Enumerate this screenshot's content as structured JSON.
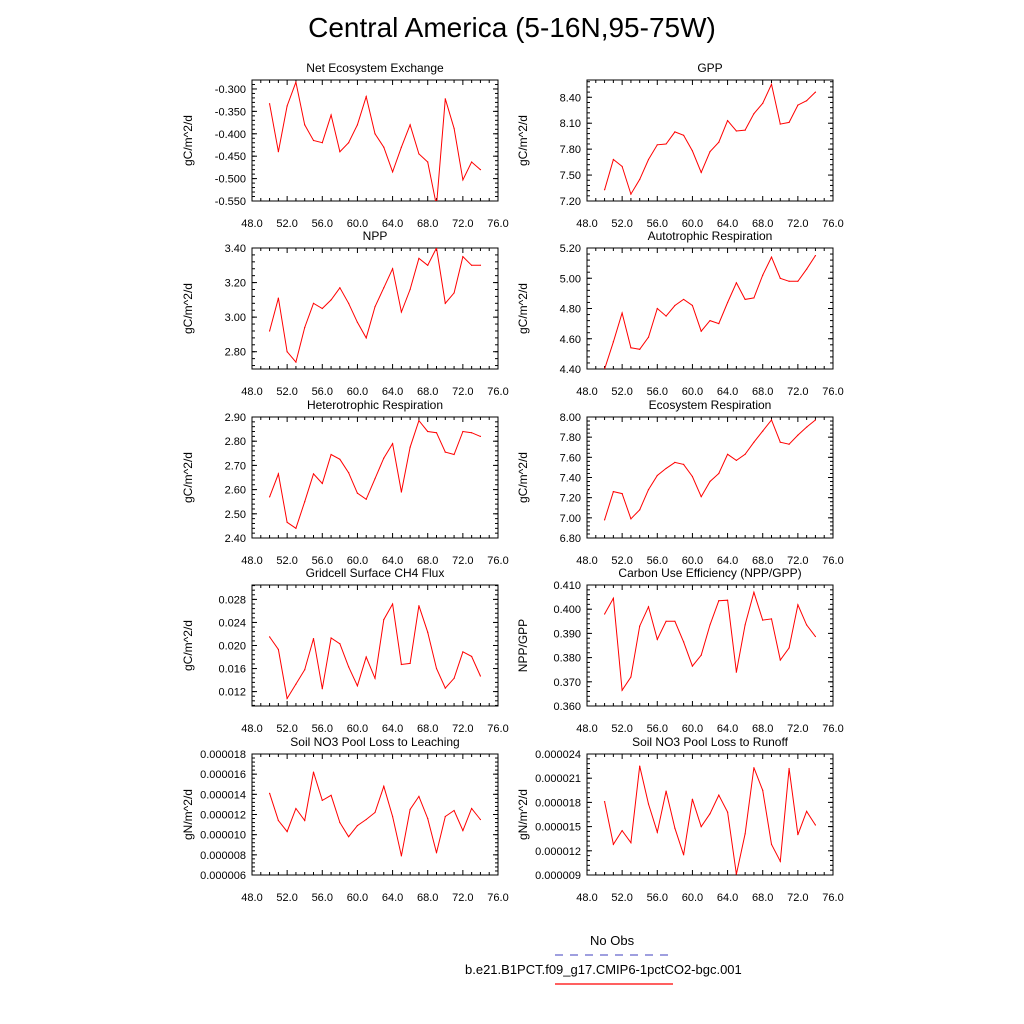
{
  "title": "Central America (5-16N,95-75W)",
  "colors": {
    "model_line": "#ff0000",
    "obs_line": "#6666cc",
    "axis": "#000000"
  },
  "legend": {
    "obs_label": "No Obs",
    "model_label": "b.e21.B1PCT.f09_g17.CMIP6-1pctCO2-bgc.001"
  },
  "chart_data": [
    {
      "type": "line",
      "title": "Net Ecosystem Exchange",
      "ylabel": "gC/m^2/d",
      "xlim": [
        48,
        76
      ],
      "ylim": [
        -0.55,
        -0.28
      ],
      "xticks": [
        "48.0",
        "52.0",
        "56.0",
        "60.0",
        "64.0",
        "68.0",
        "72.0",
        "76.0"
      ],
      "yticks": [
        -0.3,
        -0.35,
        -0.4,
        -0.45,
        -0.5,
        -0.55
      ],
      "yticklabels": [
        "-0.300",
        "-0.350",
        "-0.400",
        "-0.450",
        "-0.500",
        "-0.550"
      ],
      "x": [
        50,
        51,
        52,
        53,
        54,
        55,
        56,
        57,
        58,
        59,
        60,
        61,
        62,
        63,
        64,
        65,
        66,
        67,
        68,
        69,
        70,
        71,
        72,
        73,
        74
      ],
      "values": [
        -0.333,
        -0.44,
        -0.338,
        -0.285,
        -0.38,
        -0.415,
        -0.42,
        -0.358,
        -0.44,
        -0.42,
        -0.38,
        -0.317,
        -0.4,
        -0.43,
        -0.485,
        -0.43,
        -0.38,
        -0.445,
        -0.463,
        -0.56,
        -0.322,
        -0.388,
        -0.503,
        -0.463,
        -0.48
      ]
    },
    {
      "type": "line",
      "title": "GPP",
      "ylabel": "gC/m^2/d",
      "xlim": [
        48,
        76
      ],
      "ylim": [
        7.2,
        8.6
      ],
      "xticks": [
        "48.0",
        "52.0",
        "56.0",
        "60.0",
        "64.0",
        "68.0",
        "72.0",
        "76.0"
      ],
      "yticks": [
        7.2,
        7.5,
        7.8,
        8.1,
        8.4
      ],
      "yticklabels": [
        "7.20",
        "7.50",
        "7.80",
        "8.10",
        "8.40"
      ],
      "x": [
        50,
        51,
        52,
        53,
        54,
        55,
        56,
        57,
        58,
        59,
        60,
        61,
        62,
        63,
        64,
        65,
        66,
        67,
        68,
        69,
        70,
        71,
        72,
        73,
        74
      ],
      "values": [
        7.33,
        7.68,
        7.6,
        7.28,
        7.45,
        7.68,
        7.85,
        7.86,
        8.0,
        7.96,
        7.78,
        7.53,
        7.77,
        7.88,
        8.13,
        8.01,
        8.02,
        8.21,
        8.33,
        8.55,
        8.09,
        8.11,
        8.31,
        8.36,
        8.46
      ]
    },
    {
      "type": "line",
      "title": "NPP",
      "ylabel": "gC/m^2/d",
      "xlim": [
        48,
        76
      ],
      "ylim": [
        2.7,
        3.4
      ],
      "xticks": [
        "48.0",
        "52.0",
        "56.0",
        "60.0",
        "64.0",
        "68.0",
        "72.0",
        "76.0"
      ],
      "yticks": [
        2.8,
        3.0,
        3.2,
        3.4
      ],
      "yticklabels": [
        "2.80",
        "3.00",
        "3.20",
        "3.40"
      ],
      "x": [
        50,
        51,
        52,
        53,
        54,
        55,
        56,
        57,
        58,
        59,
        60,
        61,
        62,
        63,
        64,
        65,
        66,
        67,
        68,
        69,
        70,
        71,
        72,
        73,
        74
      ],
      "values": [
        2.92,
        3.11,
        2.8,
        2.74,
        2.94,
        3.08,
        3.05,
        3.1,
        3.17,
        3.08,
        2.97,
        2.88,
        3.06,
        3.17,
        3.28,
        3.03,
        3.16,
        3.34,
        3.3,
        3.4,
        3.08,
        3.14,
        3.35,
        3.3,
        3.3
      ]
    },
    {
      "type": "line",
      "title": "Autotrophic Respiration",
      "ylabel": "gC/m^2/d",
      "xlim": [
        48,
        76
      ],
      "ylim": [
        4.4,
        5.2
      ],
      "xticks": [
        "48.0",
        "52.0",
        "56.0",
        "60.0",
        "64.0",
        "68.0",
        "72.0",
        "76.0"
      ],
      "yticks": [
        4.4,
        4.6,
        4.8,
        5.0,
        5.2
      ],
      "yticklabels": [
        "4.40",
        "4.60",
        "4.80",
        "5.00",
        "5.20"
      ],
      "x": [
        50,
        51,
        52,
        53,
        54,
        55,
        56,
        57,
        58,
        59,
        60,
        61,
        62,
        63,
        64,
        65,
        66,
        67,
        68,
        69,
        70,
        71,
        72,
        73,
        74
      ],
      "values": [
        4.4,
        4.58,
        4.77,
        4.54,
        4.53,
        4.61,
        4.8,
        4.75,
        4.82,
        4.86,
        4.82,
        4.65,
        4.72,
        4.7,
        4.84,
        4.97,
        4.86,
        4.87,
        5.02,
        5.14,
        5.0,
        4.98,
        4.98,
        5.06,
        5.15
      ]
    },
    {
      "type": "line",
      "title": "Heterotrophic Respiration",
      "ylabel": "gC/m^2/d",
      "xlim": [
        48,
        76
      ],
      "ylim": [
        2.4,
        2.9
      ],
      "xticks": [
        "48.0",
        "52.0",
        "56.0",
        "60.0",
        "64.0",
        "68.0",
        "72.0",
        "76.0"
      ],
      "yticks": [
        2.4,
        2.5,
        2.6,
        2.7,
        2.8,
        2.9
      ],
      "yticklabels": [
        "2.40",
        "2.50",
        "2.60",
        "2.70",
        "2.80",
        "2.90"
      ],
      "x": [
        50,
        51,
        52,
        53,
        54,
        55,
        56,
        57,
        58,
        59,
        60,
        61,
        62,
        63,
        64,
        65,
        66,
        67,
        68,
        69,
        70,
        71,
        72,
        73,
        74
      ],
      "values": [
        2.57,
        2.665,
        2.465,
        2.44,
        2.55,
        2.665,
        2.625,
        2.745,
        2.725,
        2.67,
        2.585,
        2.56,
        2.645,
        2.73,
        2.79,
        2.59,
        2.775,
        2.885,
        2.84,
        2.835,
        2.755,
        2.745,
        2.84,
        2.835,
        2.82
      ]
    },
    {
      "type": "line",
      "title": "Ecosystem Respiration",
      "ylabel": "gC/m^2/d",
      "xlim": [
        48,
        76
      ],
      "ylim": [
        6.8,
        8.0
      ],
      "xticks": [
        "48.0",
        "52.0",
        "56.0",
        "60.0",
        "64.0",
        "68.0",
        "72.0",
        "76.0"
      ],
      "yticks": [
        6.8,
        7.0,
        7.2,
        7.4,
        7.6,
        7.8,
        8.0
      ],
      "yticklabels": [
        "6.80",
        "7.00",
        "7.20",
        "7.40",
        "7.60",
        "7.80",
        "8.00"
      ],
      "x": [
        50,
        51,
        52,
        53,
        54,
        55,
        56,
        57,
        58,
        59,
        60,
        61,
        62,
        63,
        64,
        65,
        66,
        67,
        68,
        69,
        70,
        71,
        72,
        73,
        74
      ],
      "values": [
        6.98,
        7.26,
        7.24,
        6.99,
        7.08,
        7.28,
        7.42,
        7.49,
        7.55,
        7.53,
        7.41,
        7.21,
        7.36,
        7.44,
        7.63,
        7.57,
        7.63,
        7.75,
        7.86,
        7.97,
        7.75,
        7.73,
        7.82,
        7.9,
        7.97
      ]
    },
    {
      "type": "line",
      "title": "Gridcell Surface CH4 Flux",
      "ylabel": "gC/m^2/d",
      "xlim": [
        48,
        76
      ],
      "ylim": [
        0.0095,
        0.0305
      ],
      "xticks": [
        "48.0",
        "52.0",
        "56.0",
        "60.0",
        "64.0",
        "68.0",
        "72.0",
        "76.0"
      ],
      "yticks": [
        0.012,
        0.016,
        0.02,
        0.024,
        0.028
      ],
      "yticklabels": [
        "0.012",
        "0.016",
        "0.020",
        "0.024",
        "0.028"
      ],
      "x": [
        50,
        51,
        52,
        53,
        54,
        55,
        56,
        57,
        58,
        59,
        60,
        61,
        62,
        63,
        64,
        65,
        66,
        67,
        68,
        69,
        70,
        71,
        72,
        73,
        74
      ],
      "values": [
        0.0215,
        0.0193,
        0.0108,
        0.0133,
        0.0158,
        0.0212,
        0.0125,
        0.0213,
        0.0203,
        0.0163,
        0.013,
        0.018,
        0.0143,
        0.0245,
        0.0272,
        0.0167,
        0.0169,
        0.0269,
        0.0223,
        0.016,
        0.0126,
        0.0143,
        0.0189,
        0.0181,
        0.0147
      ]
    },
    {
      "type": "line",
      "title": "Carbon Use Efficiency (NPP/GPP)",
      "ylabel": "NPP/GPP",
      "xlim": [
        48,
        76
      ],
      "ylim": [
        0.36,
        0.41
      ],
      "xticks": [
        "48.0",
        "52.0",
        "56.0",
        "60.0",
        "64.0",
        "68.0",
        "72.0",
        "76.0"
      ],
      "yticks": [
        0.36,
        0.37,
        0.38,
        0.39,
        0.4,
        0.41
      ],
      "yticklabels": [
        "0.360",
        "0.370",
        "0.380",
        "0.390",
        "0.400",
        "0.410"
      ],
      "x": [
        50,
        51,
        52,
        53,
        54,
        55,
        56,
        57,
        58,
        59,
        60,
        61,
        62,
        63,
        64,
        65,
        66,
        67,
        68,
        69,
        70,
        71,
        72,
        73,
        74
      ],
      "values": [
        0.398,
        0.4045,
        0.3665,
        0.372,
        0.393,
        0.401,
        0.3875,
        0.395,
        0.395,
        0.3865,
        0.3765,
        0.381,
        0.3935,
        0.4035,
        0.4037,
        0.374,
        0.3935,
        0.407,
        0.3955,
        0.396,
        0.379,
        0.384,
        0.4018,
        0.3935,
        0.3887
      ]
    },
    {
      "type": "line",
      "title": "Soil NO3 Pool Loss to Leaching",
      "ylabel": "gN/m^2/d",
      "xlim": [
        48,
        76
      ],
      "ylim": [
        6e-06,
        1.8e-05
      ],
      "xticks": [
        "48.0",
        "52.0",
        "56.0",
        "60.0",
        "64.0",
        "68.0",
        "72.0",
        "76.0"
      ],
      "yticks": [
        6e-06,
        8e-06,
        1e-05,
        1.2e-05,
        1.4e-05,
        1.6e-05,
        1.8e-05
      ],
      "yticklabels": [
        "0.000006",
        "0.000008",
        "0.000010",
        "0.000012",
        "0.000014",
        "0.000016",
        "0.000018"
      ],
      "x": [
        50,
        51,
        52,
        53,
        54,
        55,
        56,
        57,
        58,
        59,
        60,
        61,
        62,
        63,
        64,
        65,
        66,
        67,
        68,
        69,
        70,
        71,
        72,
        73,
        74
      ],
      "values": [
        1.41e-05,
        1.14e-05,
        1.03e-05,
        1.26e-05,
        1.14e-05,
        1.62e-05,
        1.34e-05,
        1.39e-05,
        1.12e-05,
        9.8e-06,
        1.09e-05,
        1.15e-05,
        1.22e-05,
        1.48e-05,
        1.18e-05,
        7.9e-06,
        1.25e-05,
        1.38e-05,
        1.16e-05,
        8.2e-06,
        1.18e-05,
        1.24e-05,
        1.04e-05,
        1.26e-05,
        1.15e-05
      ]
    },
    {
      "type": "line",
      "title": "Soil NO3 Pool Loss to Runoff",
      "ylabel": "gN/m^2/d",
      "xlim": [
        48,
        76
      ],
      "ylim": [
        9e-06,
        2.4e-05
      ],
      "xticks": [
        "48.0",
        "52.0",
        "56.0",
        "60.0",
        "64.0",
        "68.0",
        "72.0",
        "76.0"
      ],
      "yticks": [
        9e-06,
        1.2e-05,
        1.5e-05,
        1.8e-05,
        2.1e-05,
        2.4e-05
      ],
      "yticklabels": [
        "0.000009",
        "0.000012",
        "0.000015",
        "0.000018",
        "0.000021",
        "0.000024"
      ],
      "x": [
        50,
        51,
        52,
        53,
        54,
        55,
        56,
        57,
        58,
        59,
        60,
        61,
        62,
        63,
        64,
        65,
        66,
        67,
        68,
        69,
        70,
        71,
        72,
        73,
        74
      ],
      "values": [
        1.81e-05,
        1.28e-05,
        1.45e-05,
        1.3e-05,
        2.25e-05,
        1.78e-05,
        1.43e-05,
        1.94e-05,
        1.48e-05,
        1.15e-05,
        1.84e-05,
        1.5e-05,
        1.66e-05,
        1.89e-05,
        1.68e-05,
        9.1e-06,
        1.41e-05,
        2.23e-05,
        1.95e-05,
        1.28e-05,
        1.07e-05,
        2.22e-05,
        1.4e-05,
        1.69e-05,
        1.52e-05
      ]
    }
  ]
}
